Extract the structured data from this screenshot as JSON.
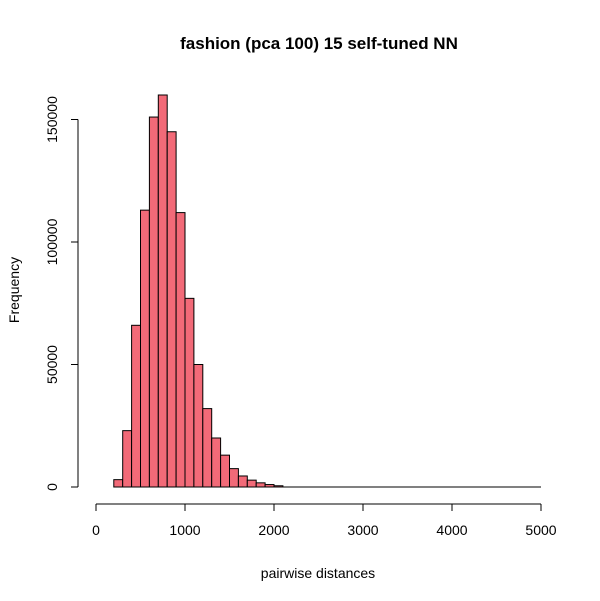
{
  "chart_data": {
    "type": "bar",
    "title": "fashion (pca 100) 15 self-tuned NN",
    "xlabel": "pairwise distances",
    "ylabel": "Frequency",
    "bin_width": 100,
    "bin_start": 200,
    "values": [
      3000,
      23000,
      66000,
      113000,
      151000,
      160000,
      145000,
      112000,
      77000,
      50000,
      32000,
      20000,
      13000,
      7500,
      4500,
      2800,
      1700,
      1000,
      500
    ],
    "xlim": [
      0,
      5000
    ],
    "ylim": [
      0,
      160000
    ],
    "axis_end": 5000,
    "x_ticks": [
      "0",
      "1000",
      "2000",
      "3000",
      "4000",
      "5000"
    ],
    "x_tick_values": [
      0,
      1000,
      2000,
      3000,
      4000,
      5000
    ],
    "y_ticks": [
      "0",
      "50000",
      "100000",
      "150000"
    ],
    "y_tick_values": [
      0,
      50000,
      100000,
      150000
    ],
    "bar_color": "#f26a78",
    "grid": false,
    "legend": "none"
  }
}
